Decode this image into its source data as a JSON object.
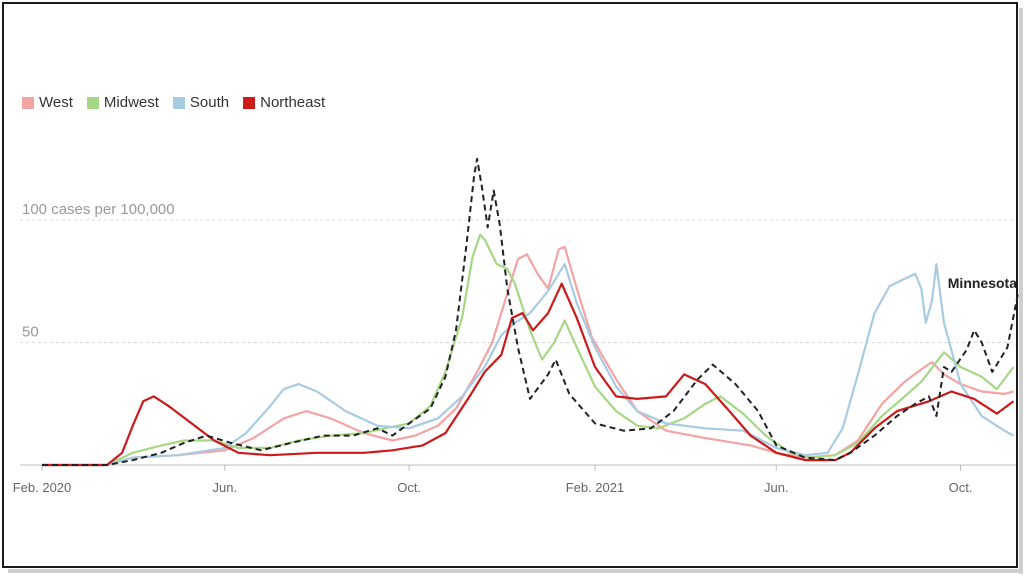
{
  "chart_data": {
    "type": "line",
    "title": "",
    "ylabel": "",
    "xlabel": "",
    "ylim": [
      0,
      125
    ],
    "y_gridlines": [
      {
        "value": 50,
        "label": "50"
      },
      {
        "value": 100,
        "label": "100 cases per 100,000"
      }
    ],
    "x_ticks": [
      {
        "date": "2020-02-01",
        "label": "Feb. 2020"
      },
      {
        "date": "2020-06-01",
        "label": "Jun."
      },
      {
        "date": "2020-10-01",
        "label": "Oct."
      },
      {
        "date": "2021-02-01",
        "label": "Feb. 2021"
      },
      {
        "date": "2021-06-01",
        "label": "Jun."
      },
      {
        "date": "2021-10-01",
        "label": "Oct."
      }
    ],
    "legend_position": "top-left",
    "annotation": {
      "label": "Minnesota"
    },
    "series": [
      {
        "name": "West",
        "color": "#f4a3a3",
        "style": "solid",
        "points": [
          [
            "2020-02-01",
            0
          ],
          [
            "2020-03-15",
            0
          ],
          [
            "2020-04-01",
            3
          ],
          [
            "2020-05-01",
            4
          ],
          [
            "2020-06-01",
            6
          ],
          [
            "2020-06-20",
            11
          ],
          [
            "2020-07-10",
            19
          ],
          [
            "2020-07-25",
            22
          ],
          [
            "2020-08-10",
            19
          ],
          [
            "2020-09-01",
            13
          ],
          [
            "2020-09-20",
            10
          ],
          [
            "2020-10-05",
            12
          ],
          [
            "2020-10-20",
            16
          ],
          [
            "2020-11-01",
            23
          ],
          [
            "2020-11-15",
            38
          ],
          [
            "2020-11-25",
            50
          ],
          [
            "2020-12-05",
            70
          ],
          [
            "2020-12-12",
            84
          ],
          [
            "2020-12-18",
            86
          ],
          [
            "2020-12-25",
            78
          ],
          [
            "2021-01-01",
            72
          ],
          [
            "2021-01-08",
            88
          ],
          [
            "2021-01-12",
            89
          ],
          [
            "2021-01-20",
            72
          ],
          [
            "2021-01-30",
            52
          ],
          [
            "2021-02-15",
            35
          ],
          [
            "2021-03-01",
            22
          ],
          [
            "2021-03-20",
            14
          ],
          [
            "2021-04-15",
            11
          ],
          [
            "2021-05-15",
            8
          ],
          [
            "2021-06-01",
            5
          ],
          [
            "2021-06-20",
            3
          ],
          [
            "2021-07-10",
            4
          ],
          [
            "2021-07-25",
            10
          ],
          [
            "2021-08-10",
            25
          ],
          [
            "2021-08-25",
            34
          ],
          [
            "2021-09-05",
            39
          ],
          [
            "2021-09-12",
            42
          ],
          [
            "2021-09-20",
            37
          ],
          [
            "2021-10-01",
            33
          ],
          [
            "2021-10-15",
            30
          ],
          [
            "2021-10-30",
            29
          ],
          [
            "2021-11-05",
            30
          ]
        ]
      },
      {
        "name": "Midwest",
        "color": "#a6d785",
        "style": "solid",
        "points": [
          [
            "2020-02-01",
            0
          ],
          [
            "2020-03-15",
            0
          ],
          [
            "2020-04-01",
            5
          ],
          [
            "2020-04-20",
            8
          ],
          [
            "2020-05-05",
            10
          ],
          [
            "2020-05-25",
            10
          ],
          [
            "2020-06-10",
            7
          ],
          [
            "2020-07-01",
            7
          ],
          [
            "2020-07-20",
            10
          ],
          [
            "2020-08-10",
            12
          ],
          [
            "2020-09-01",
            13
          ],
          [
            "2020-09-15",
            15
          ],
          [
            "2020-10-01",
            17
          ],
          [
            "2020-10-15",
            24
          ],
          [
            "2020-10-25",
            38
          ],
          [
            "2020-11-05",
            60
          ],
          [
            "2020-11-12",
            85
          ],
          [
            "2020-11-17",
            94
          ],
          [
            "2020-11-20",
            92
          ],
          [
            "2020-11-28",
            82
          ],
          [
            "2020-12-05",
            80
          ],
          [
            "2020-12-10",
            74
          ],
          [
            "2020-12-20",
            55
          ],
          [
            "2020-12-28",
            43
          ],
          [
            "2021-01-05",
            50
          ],
          [
            "2021-01-12",
            59
          ],
          [
            "2021-01-20",
            48
          ],
          [
            "2021-02-01",
            32
          ],
          [
            "2021-02-15",
            22
          ],
          [
            "2021-03-01",
            16
          ],
          [
            "2021-03-15",
            15
          ],
          [
            "2021-04-01",
            19
          ],
          [
            "2021-04-15",
            25
          ],
          [
            "2021-04-25",
            28
          ],
          [
            "2021-05-10",
            21
          ],
          [
            "2021-05-25",
            12
          ],
          [
            "2021-06-10",
            5
          ],
          [
            "2021-06-25",
            3
          ],
          [
            "2021-07-10",
            4
          ],
          [
            "2021-07-25",
            9
          ],
          [
            "2021-08-10",
            20
          ],
          [
            "2021-08-25",
            28
          ],
          [
            "2021-09-05",
            34
          ],
          [
            "2021-09-15",
            42
          ],
          [
            "2021-09-20",
            46
          ],
          [
            "2021-10-01",
            40
          ],
          [
            "2021-10-15",
            36
          ],
          [
            "2021-10-25",
            31
          ],
          [
            "2021-11-05",
            40
          ]
        ]
      },
      {
        "name": "South",
        "color": "#a8cbe4",
        "style": "solid",
        "points": [
          [
            "2020-02-01",
            0
          ],
          [
            "2020-03-15",
            0
          ],
          [
            "2020-04-01",
            3
          ],
          [
            "2020-05-01",
            4
          ],
          [
            "2020-06-01",
            7
          ],
          [
            "2020-06-15",
            13
          ],
          [
            "2020-07-01",
            24
          ],
          [
            "2020-07-10",
            31
          ],
          [
            "2020-07-20",
            33
          ],
          [
            "2020-08-01",
            30
          ],
          [
            "2020-08-20",
            22
          ],
          [
            "2020-09-10",
            16
          ],
          [
            "2020-10-01",
            15
          ],
          [
            "2020-10-20",
            19
          ],
          [
            "2020-11-05",
            28
          ],
          [
            "2020-11-20",
            40
          ],
          [
            "2020-12-01",
            53
          ],
          [
            "2020-12-10",
            58
          ],
          [
            "2020-12-20",
            62
          ],
          [
            "2021-01-01",
            71
          ],
          [
            "2021-01-12",
            82
          ],
          [
            "2021-01-20",
            66
          ],
          [
            "2021-02-01",
            48
          ],
          [
            "2021-02-15",
            32
          ],
          [
            "2021-03-01",
            22
          ],
          [
            "2021-03-20",
            17
          ],
          [
            "2021-04-15",
            15
          ],
          [
            "2021-05-10",
            14
          ],
          [
            "2021-06-01",
            7
          ],
          [
            "2021-06-20",
            4
          ],
          [
            "2021-07-05",
            5
          ],
          [
            "2021-07-15",
            15
          ],
          [
            "2021-07-25",
            37
          ],
          [
            "2021-08-05",
            62
          ],
          [
            "2021-08-15",
            73
          ],
          [
            "2021-08-25",
            76
          ],
          [
            "2021-09-01",
            78
          ],
          [
            "2021-09-05",
            72
          ],
          [
            "2021-09-08",
            58
          ],
          [
            "2021-09-12",
            67
          ],
          [
            "2021-09-15",
            82
          ],
          [
            "2021-09-20",
            58
          ],
          [
            "2021-10-01",
            33
          ],
          [
            "2021-10-15",
            20
          ],
          [
            "2021-10-30",
            14
          ],
          [
            "2021-11-05",
            12
          ]
        ]
      },
      {
        "name": "Northeast",
        "color": "#cc1a1a",
        "style": "solid",
        "points": [
          [
            "2020-02-01",
            0
          ],
          [
            "2020-03-15",
            0
          ],
          [
            "2020-03-25",
            5
          ],
          [
            "2020-04-01",
            16
          ],
          [
            "2020-04-08",
            26
          ],
          [
            "2020-04-15",
            28
          ],
          [
            "2020-04-25",
            24
          ],
          [
            "2020-05-10",
            17
          ],
          [
            "2020-05-25",
            10
          ],
          [
            "2020-06-10",
            5
          ],
          [
            "2020-07-01",
            4
          ],
          [
            "2020-08-01",
            5
          ],
          [
            "2020-09-01",
            5
          ],
          [
            "2020-09-20",
            6
          ],
          [
            "2020-10-10",
            8
          ],
          [
            "2020-10-25",
            13
          ],
          [
            "2020-11-10",
            28
          ],
          [
            "2020-11-20",
            38
          ],
          [
            "2020-12-01",
            45
          ],
          [
            "2020-12-08",
            60
          ],
          [
            "2020-12-15",
            62
          ],
          [
            "2020-12-22",
            55
          ],
          [
            "2021-01-01",
            62
          ],
          [
            "2021-01-10",
            74
          ],
          [
            "2021-01-20",
            60
          ],
          [
            "2021-02-01",
            40
          ],
          [
            "2021-02-15",
            28
          ],
          [
            "2021-03-01",
            27
          ],
          [
            "2021-03-20",
            28
          ],
          [
            "2021-04-01",
            37
          ],
          [
            "2021-04-15",
            33
          ],
          [
            "2021-05-01",
            22
          ],
          [
            "2021-05-15",
            12
          ],
          [
            "2021-06-01",
            5
          ],
          [
            "2021-06-20",
            2
          ],
          [
            "2021-07-10",
            2
          ],
          [
            "2021-07-20",
            5
          ],
          [
            "2021-08-05",
            15
          ],
          [
            "2021-08-20",
            22
          ],
          [
            "2021-09-10",
            26
          ],
          [
            "2021-09-25",
            30
          ],
          [
            "2021-10-10",
            27
          ],
          [
            "2021-10-25",
            21
          ],
          [
            "2021-11-05",
            26
          ]
        ]
      },
      {
        "name": "Minnesota",
        "color": "#222222",
        "style": "dashed",
        "points": [
          [
            "2020-02-01",
            0
          ],
          [
            "2020-03-15",
            0
          ],
          [
            "2020-04-01",
            2
          ],
          [
            "2020-04-20",
            5
          ],
          [
            "2020-05-05",
            9
          ],
          [
            "2020-05-20",
            12
          ],
          [
            "2020-06-05",
            9
          ],
          [
            "2020-06-25",
            6
          ],
          [
            "2020-07-15",
            9
          ],
          [
            "2020-08-05",
            12
          ],
          [
            "2020-08-25",
            12
          ],
          [
            "2020-09-10",
            15
          ],
          [
            "2020-09-20",
            12
          ],
          [
            "2020-10-01",
            17
          ],
          [
            "2020-10-15",
            23
          ],
          [
            "2020-10-25",
            36
          ],
          [
            "2020-11-01",
            55
          ],
          [
            "2020-11-08",
            90
          ],
          [
            "2020-11-13",
            118
          ],
          [
            "2020-11-15",
            125
          ],
          [
            "2020-11-18",
            114
          ],
          [
            "2020-11-22",
            97
          ],
          [
            "2020-11-26",
            112
          ],
          [
            "2020-11-30",
            98
          ],
          [
            "2020-12-05",
            72
          ],
          [
            "2020-12-12",
            48
          ],
          [
            "2020-12-20",
            27
          ],
          [
            "2021-01-01",
            37
          ],
          [
            "2021-01-06",
            43
          ],
          [
            "2021-01-15",
            29
          ],
          [
            "2021-02-01",
            17
          ],
          [
            "2021-02-20",
            14
          ],
          [
            "2021-03-10",
            15
          ],
          [
            "2021-03-25",
            22
          ],
          [
            "2021-04-10",
            35
          ],
          [
            "2021-04-20",
            41
          ],
          [
            "2021-05-05",
            33
          ],
          [
            "2021-05-20",
            22
          ],
          [
            "2021-06-01",
            8
          ],
          [
            "2021-06-20",
            3
          ],
          [
            "2021-07-10",
            2
          ],
          [
            "2021-07-20",
            5
          ],
          [
            "2021-08-05",
            12
          ],
          [
            "2021-08-20",
            20
          ],
          [
            "2021-09-01",
            25
          ],
          [
            "2021-09-10",
            28
          ],
          [
            "2021-09-15",
            20
          ],
          [
            "2021-09-20",
            40
          ],
          [
            "2021-09-25",
            38
          ],
          [
            "2021-10-05",
            47
          ],
          [
            "2021-10-10",
            55
          ],
          [
            "2021-10-15",
            50
          ],
          [
            "2021-10-22",
            38
          ],
          [
            "2021-11-01",
            48
          ],
          [
            "2021-11-08",
            70
          ]
        ]
      }
    ]
  }
}
